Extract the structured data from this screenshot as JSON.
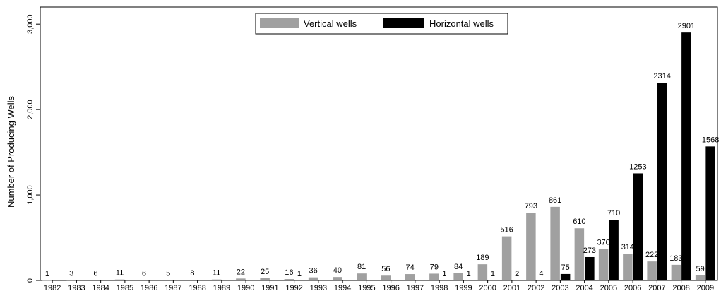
{
  "chart_data": {
    "type": "bar",
    "title": "",
    "xlabel": "",
    "ylabel": "Number of Producing Wells",
    "ylim": [
      0,
      3200
    ],
    "yticks": [
      0,
      1000,
      2000,
      3000
    ],
    "ytick_labels": [
      "0",
      "1,000",
      "2,000",
      "3,000"
    ],
    "grid": false,
    "legend_position": "top-center",
    "categories": [
      "1982",
      "1983",
      "1984",
      "1985",
      "1986",
      "1987",
      "1988",
      "1989",
      "1990",
      "1991",
      "1992",
      "1993",
      "1994",
      "1995",
      "1996",
      "1997",
      "1998",
      "1999",
      "2000",
      "2001",
      "2002",
      "2003",
      "2004",
      "2005",
      "2006",
      "2007",
      "2008",
      "2009"
    ],
    "series": [
      {
        "name": "Vertical wells",
        "color": "#a0a0a0",
        "values": [
          1,
          3,
          6,
          11,
          6,
          5,
          8,
          11,
          22,
          25,
          16,
          36,
          40,
          81,
          56,
          74,
          79,
          84,
          189,
          516,
          793,
          861,
          610,
          370,
          314,
          222,
          183,
          59
        ],
        "labels": [
          "1",
          "3",
          "6",
          "11",
          "6",
          "5",
          "8",
          "11",
          "22",
          "25",
          "16",
          "36",
          "40",
          "81",
          "56",
          "74",
          "79",
          "84",
          "189",
          "516",
          "793",
          "861",
          "610",
          "370",
          "314",
          "222",
          "183",
          "59"
        ]
      },
      {
        "name": "Horizontal wells",
        "color": "#000000",
        "values": [
          null,
          null,
          null,
          null,
          null,
          null,
          null,
          null,
          null,
          null,
          1,
          null,
          null,
          null,
          null,
          null,
          1,
          1,
          1,
          2,
          4,
          75,
          273,
          710,
          1253,
          2314,
          2901,
          1568
        ],
        "labels": [
          "",
          "",
          "",
          "",
          "",
          "",
          "",
          "",
          "",
          "",
          "1",
          "",
          "",
          "",
          "",
          "",
          "1",
          "1",
          "1",
          "2",
          "4",
          "75",
          "273",
          "710",
          "1253",
          "2314",
          "2901",
          "1568"
        ]
      }
    ]
  }
}
